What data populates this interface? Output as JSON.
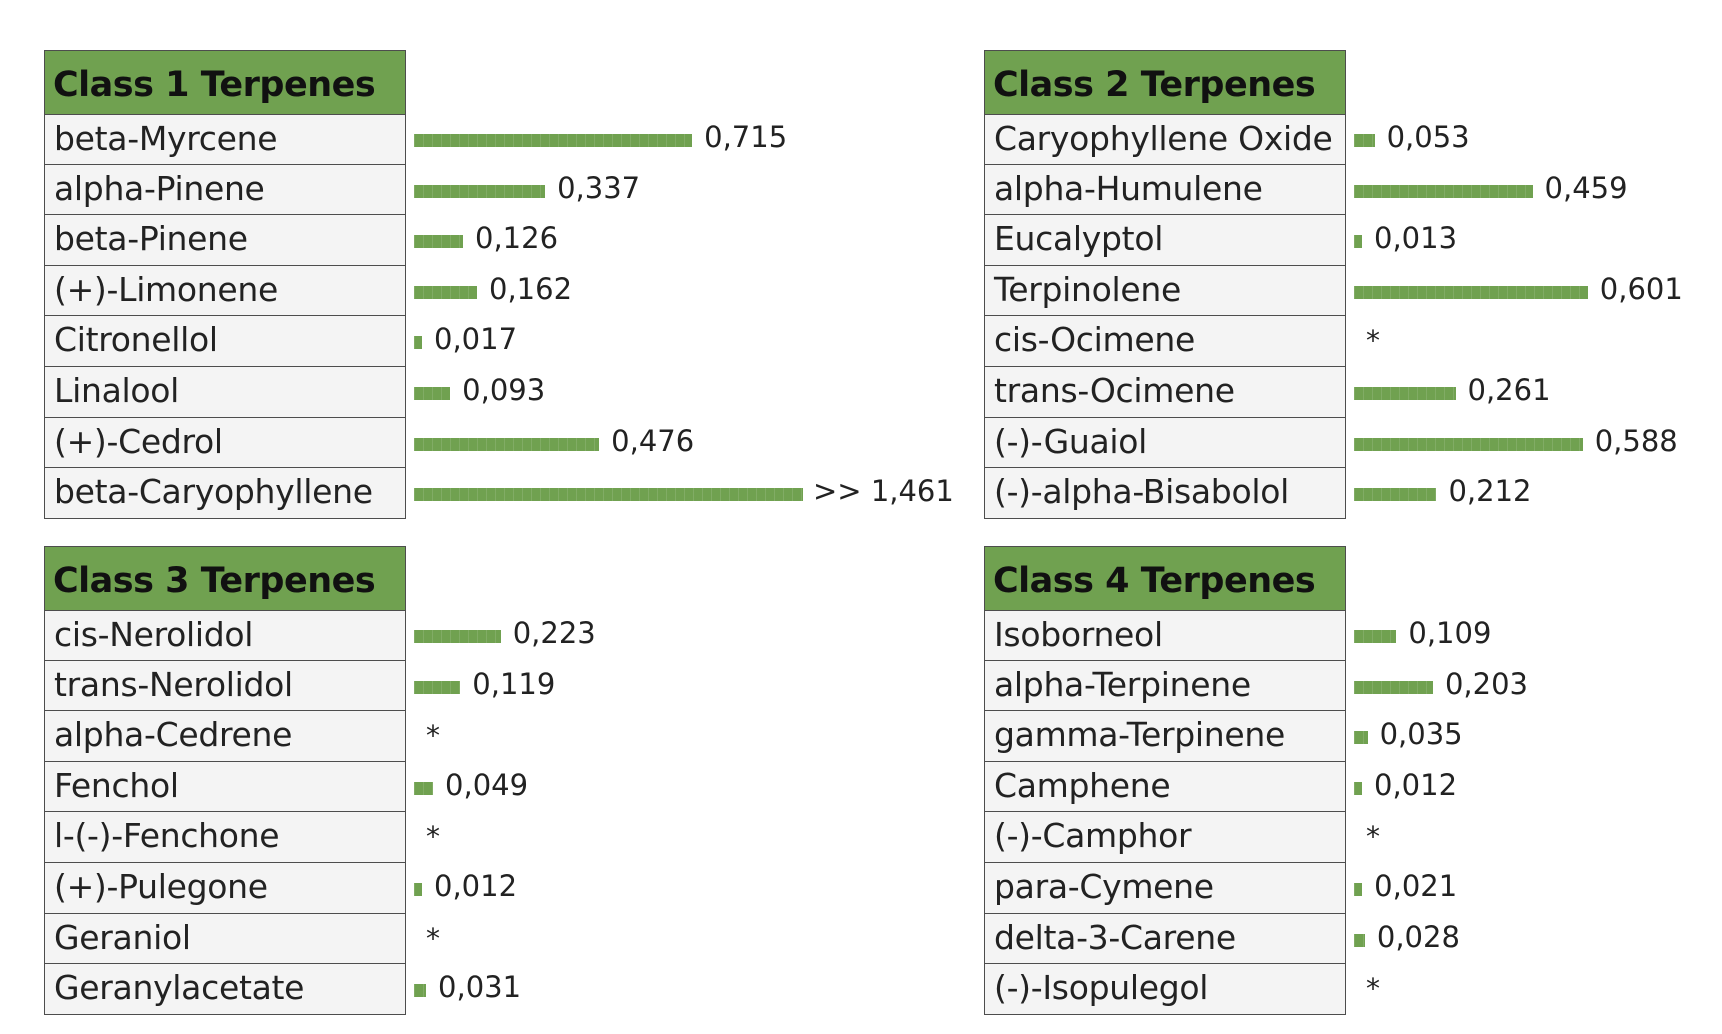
{
  "colors": {
    "accent": "#70a150",
    "label_bg": "#f4f4f4",
    "border": "#4d4d4d"
  },
  "chart_data": [
    {
      "type": "bar",
      "title": "Class 1 Terpenes",
      "categories": [
        "beta-Myrcene",
        "alpha-Pinene",
        "beta-Pinene",
        "(+)-Limonene",
        "Citronellol",
        "Linalool",
        "(+)-Cedrol",
        "beta-Caryophyllene"
      ],
      "values": [
        0.715,
        0.337,
        0.126,
        0.162,
        0.017,
        0.093,
        0.476,
        1.461
      ],
      "value_labels": [
        "0,715",
        "0,337",
        "0,126",
        "0,162",
        "0,017",
        "0,093",
        "0,476",
        ">> 1,461"
      ],
      "bar_extent": [
        0.715,
        0.337,
        0.126,
        0.162,
        0.017,
        0.093,
        0.476,
        1.0
      ]
    },
    {
      "type": "bar",
      "title": "Class 2 Terpenes",
      "categories": [
        "Caryophyllene Oxide",
        "alpha-Humulene",
        "Eucalyptol",
        "Terpinolene",
        "cis-Ocimene",
        "trans-Ocimene",
        "(-)-Guaiol",
        "(-)-alpha-Bisabolol"
      ],
      "values": [
        0.053,
        0.459,
        0.013,
        0.601,
        null,
        0.261,
        0.588,
        0.212
      ],
      "value_labels": [
        "0,053",
        "0,459",
        "0,013",
        "0,601",
        "*",
        "0,261",
        "0,588",
        "0,212"
      ]
    },
    {
      "type": "bar",
      "title": "Class 3 Terpenes",
      "categories": [
        "cis-Nerolidol",
        "trans-Nerolidol",
        "alpha-Cedrene",
        "Fenchol",
        "l-(-)-Fenchone",
        "(+)-Pulegone",
        "Geraniol",
        "Geranylacetate"
      ],
      "values": [
        0.223,
        0.119,
        null,
        0.049,
        null,
        0.012,
        null,
        0.031
      ],
      "value_labels": [
        "0,223",
        "0,119",
        "*",
        "0,049",
        "*",
        "0,012",
        "*",
        "0,031"
      ]
    },
    {
      "type": "bar",
      "title": "Class 4 Terpenes",
      "categories": [
        "Isoborneol",
        "alpha-Terpinene",
        "gamma-Terpinene",
        "Camphene",
        "(-)-Camphor",
        "para-Cymene",
        "delta-3-Carene",
        "(-)-Isopulegol"
      ],
      "values": [
        0.109,
        0.203,
        0.035,
        0.012,
        null,
        0.021,
        0.028,
        null
      ],
      "value_labels": [
        "0,109",
        "0,203",
        "0,035",
        "0,012",
        "*",
        "0,021",
        "0,028",
        "*"
      ]
    }
  ]
}
